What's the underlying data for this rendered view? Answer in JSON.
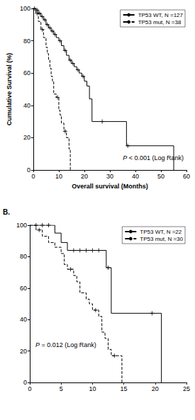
{
  "chart_data": [
    {
      "type": "line",
      "x_label": "Overall survival (Months)",
      "y_label": "Cumulative Survival (%)",
      "annotation": "P < 0.001 (Log Rank)",
      "xlim": [
        0,
        60
      ],
      "xticks": [
        0,
        10,
        20,
        30,
        40,
        50,
        60
      ],
      "ylim": [
        0,
        100
      ],
      "yticks": [
        0,
        20,
        40,
        60,
        80,
        100
      ],
      "grid": false,
      "legend": "upper right",
      "series": [
        {
          "name": "TP53 WT, N =127",
          "color": "#000000",
          "line_style": "solid",
          "marker": "plus",
          "x": [
            0,
            1,
            2,
            3,
            4,
            5,
            6,
            7,
            8,
            9,
            10,
            11,
            12,
            13,
            14,
            15,
            16,
            17,
            18,
            19,
            20,
            21,
            22,
            23,
            36.5,
            55
          ],
          "values": [
            100,
            99,
            97,
            95,
            93,
            90,
            88,
            86,
            84,
            82,
            80,
            77,
            74,
            71,
            68,
            66,
            64,
            62,
            60,
            58,
            55,
            52,
            44,
            30,
            15,
            0
          ],
          "censored": {
            "x": [
              0.5,
              1.5,
              2.5,
              3.5,
              4.5,
              5.5,
              6.5,
              7.5,
              8.5,
              10.5,
              12.5,
              14.5,
              15.5,
              17.5,
              19.5,
              27,
              37
            ],
            "values": [
              100,
              99,
              97,
              95,
              93,
              90,
              88,
              86,
              84,
              80,
              74,
              68,
              66,
              62,
              58,
              30,
              15
            ]
          }
        },
        {
          "name": "TP53 mut, N =38",
          "color": "#000000",
          "line_style": "dashed",
          "marker": "plus",
          "x": [
            0,
            1,
            2,
            3,
            4,
            5,
            5.5,
            6,
            6.5,
            7,
            7.5,
            8,
            9,
            10,
            10.5,
            11,
            12,
            13,
            14,
            14.5
          ],
          "values": [
            100,
            97,
            92,
            87,
            82,
            76,
            72,
            68,
            63,
            58,
            55,
            47,
            45,
            37,
            34,
            29,
            24,
            20,
            13,
            0
          ],
          "censored": {
            "x": [
              1.5,
              3.5,
              9.5,
              12.5
            ],
            "values": [
              97,
              87,
              45,
              24
            ]
          }
        }
      ]
    },
    {
      "type": "line",
      "label": "B.",
      "annotation": "P = 0.012 (Log Rank)",
      "xlim": [
        0,
        25
      ],
      "xticks": [
        0,
        5,
        10,
        15,
        20,
        25
      ],
      "ylim": [
        0,
        100
      ],
      "yticks": [
        0,
        20,
        40,
        60,
        80,
        100
      ],
      "grid": false,
      "legend": "upper right",
      "series": [
        {
          "name": "TP53 WT, N =22",
          "color": "#000000",
          "line_style": "solid",
          "marker": "plus",
          "x": [
            0,
            4,
            5,
            6,
            12.2,
            13,
            21
          ],
          "values": [
            100,
            95,
            89,
            84,
            73,
            44,
            0
          ],
          "censored": {
            "x": [
              1,
              2,
              3,
              7,
              8,
              9,
              10,
              11,
              12.5,
              19.5
            ],
            "values": [
              100,
              100,
              100,
              84,
              84,
              84,
              84,
              84,
              73,
              44
            ]
          }
        },
        {
          "name": "TP53 mut, N =30",
          "color": "#000000",
          "line_style": "dashed",
          "marker": "plus",
          "x": [
            0,
            1,
            2,
            3,
            4,
            5,
            5.5,
            6,
            7,
            7.5,
            8,
            9,
            9.5,
            10,
            11,
            11.5,
            12,
            12.5,
            13,
            14.7
          ],
          "values": [
            100,
            97,
            93,
            89,
            86,
            82,
            75,
            72,
            68,
            64,
            57,
            53,
            50,
            46,
            42,
            32,
            28,
            21,
            17,
            0
          ],
          "censored": {
            "x": [
              1.5,
              6.5,
              10.5,
              13.5
            ],
            "values": [
              97,
              72,
              46,
              17
            ]
          }
        }
      ]
    }
  ]
}
